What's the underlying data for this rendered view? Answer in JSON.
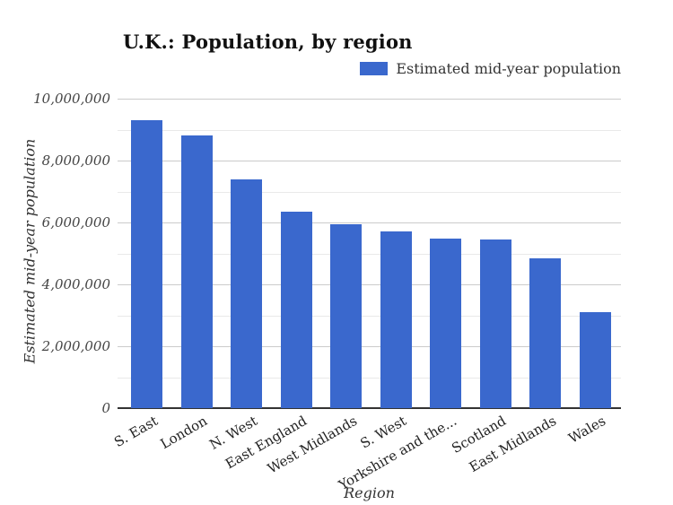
{
  "chart_data": {
    "type": "bar",
    "title": "U.K.: Population, by region",
    "xlabel": "Region",
    "ylabel": "Estimated mid-year population",
    "legend": [
      {
        "label": "Estimated mid-year population",
        "color": "#3a68cd"
      }
    ],
    "categories": [
      "S. East",
      "London",
      "N. West",
      "East England",
      "West Midlands",
      "S. West",
      "Yorkshire and the...",
      "Scotland",
      "East Midlands",
      "Wales"
    ],
    "values": [
      9300000,
      8800000,
      7400000,
      6350000,
      5950000,
      5700000,
      5480000,
      5450000,
      4850000,
      3100000
    ],
    "ylim": [
      0,
      10000000
    ],
    "y_major_ticks": [
      {
        "value": 0,
        "label": "0"
      },
      {
        "value": 2000000,
        "label": "2,000,000"
      },
      {
        "value": 4000000,
        "label": "4,000,000"
      },
      {
        "value": 6000000,
        "label": "6,000,000"
      },
      {
        "value": 8000000,
        "label": "8,000,000"
      },
      {
        "value": 10000000,
        "label": "10,000,000"
      }
    ],
    "y_major_interval": 2000000,
    "y_minor_interval": 1000000,
    "grid": true,
    "legend_position": "top-right",
    "bar_color": "#3a68cd",
    "x_label_rotation_deg": -30
  }
}
